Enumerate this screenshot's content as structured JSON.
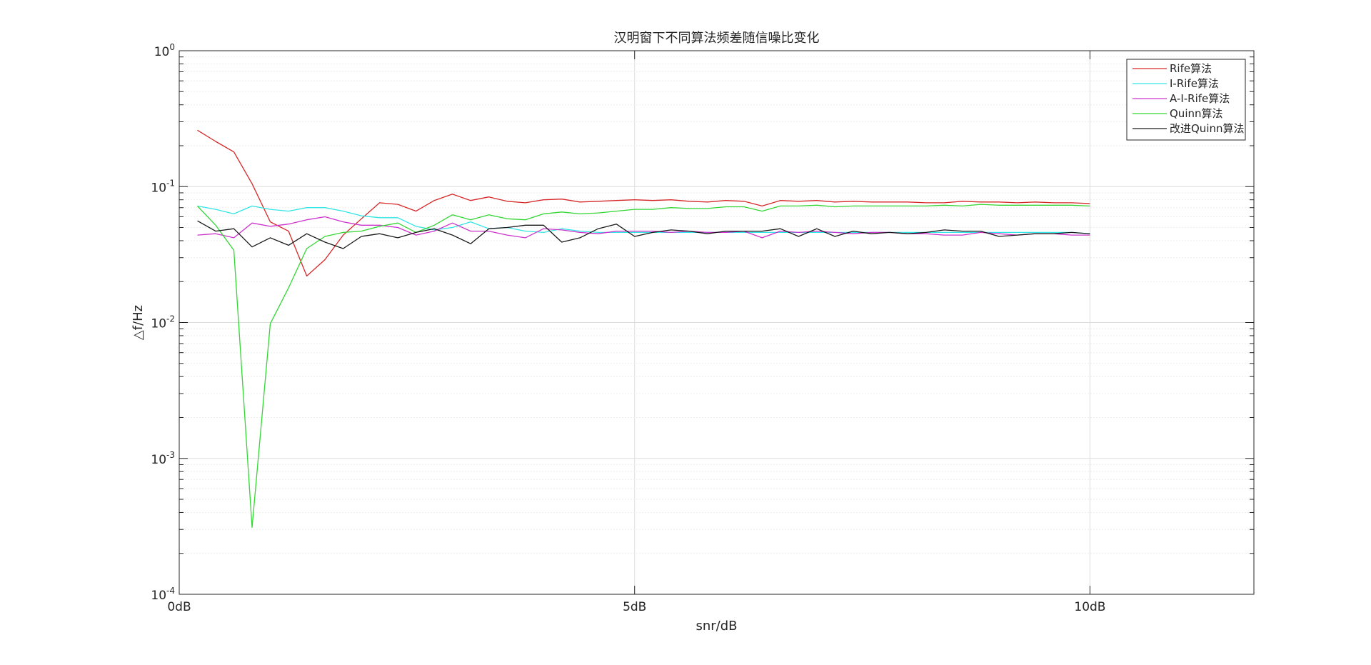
{
  "chart_data": {
    "type": "line",
    "title": "汉明窗下不同算法频差随信噪比变化",
    "xlabel": "snr/dB",
    "ylabel": "△f/Hz",
    "xscale": "linear",
    "yscale": "log",
    "xlim": [
      0,
      11.8
    ],
    "ylim": [
      0.0001,
      1
    ],
    "xticks": [
      0,
      5,
      10
    ],
    "xtick_labels": [
      "0dB",
      "5dB",
      "10dB"
    ],
    "yticks": [
      0.0001,
      0.001,
      0.01,
      0.1,
      1
    ],
    "ytick_labels": [
      {
        "base": "10",
        "exp": "-4"
      },
      {
        "base": "10",
        "exp": "-3"
      },
      {
        "base": "10",
        "exp": "-2"
      },
      {
        "base": "10",
        "exp": "-1"
      },
      {
        "base": "10",
        "exp": "0"
      }
    ],
    "grid": true,
    "legend_position": "top-right",
    "x": [
      0.2,
      0.4,
      0.6,
      0.8,
      1.0,
      1.2,
      1.4,
      1.6,
      1.8,
      2.0,
      2.2,
      2.4,
      2.6,
      2.8,
      3.0,
      3.2,
      3.4,
      3.6,
      3.8,
      4.0,
      4.2,
      4.4,
      4.6,
      4.8,
      5.0,
      5.2,
      5.4,
      5.6,
      5.8,
      6.0,
      6.2,
      6.4,
      6.6,
      6.8,
      7.0,
      7.2,
      7.4,
      7.6,
      7.8,
      8.0,
      8.2,
      8.4,
      8.6,
      8.8,
      9.0,
      9.2,
      9.4,
      9.6,
      9.8,
      10.0
    ],
    "series": [
      {
        "name": "Rife算法",
        "color": "#d62728",
        "values": [
          0.26,
          0.215,
          0.18,
          0.105,
          0.055,
          0.047,
          0.022,
          0.029,
          0.044,
          0.058,
          0.076,
          0.074,
          0.066,
          0.079,
          0.088,
          0.079,
          0.084,
          0.078,
          0.076,
          0.08,
          0.081,
          0.077,
          0.078,
          0.079,
          0.08,
          0.079,
          0.08,
          0.078,
          0.077,
          0.079,
          0.078,
          0.072,
          0.079,
          0.078,
          0.079,
          0.077,
          0.078,
          0.077,
          0.077,
          0.077,
          0.076,
          0.076,
          0.078,
          0.077,
          0.077,
          0.076,
          0.077,
          0.076,
          0.076,
          0.075
        ]
      },
      {
        "name": "I-Rife算法",
        "color": "#33e5e5",
        "values": [
          0.072,
          0.068,
          0.063,
          0.072,
          0.068,
          0.066,
          0.07,
          0.07,
          0.066,
          0.061,
          0.059,
          0.059,
          0.051,
          0.048,
          0.05,
          0.055,
          0.049,
          0.05,
          0.047,
          0.046,
          0.049,
          0.047,
          0.046,
          0.046,
          0.046,
          0.046,
          0.046,
          0.046,
          0.046,
          0.046,
          0.046,
          0.046,
          0.046,
          0.046,
          0.046,
          0.046,
          0.046,
          0.046,
          0.046,
          0.046,
          0.046,
          0.046,
          0.046,
          0.046,
          0.046,
          0.046,
          0.046,
          0.046,
          0.046,
          0.045
        ]
      },
      {
        "name": "A-I-Rife算法",
        "color": "#cc33cc",
        "values": [
          0.044,
          0.045,
          0.042,
          0.054,
          0.051,
          0.053,
          0.057,
          0.06,
          0.055,
          0.052,
          0.052,
          0.05,
          0.044,
          0.047,
          0.054,
          0.047,
          0.047,
          0.044,
          0.042,
          0.049,
          0.048,
          0.046,
          0.045,
          0.047,
          0.047,
          0.047,
          0.046,
          0.047,
          0.046,
          0.046,
          0.047,
          0.042,
          0.047,
          0.046,
          0.047,
          0.046,
          0.045,
          0.046,
          0.046,
          0.045,
          0.045,
          0.044,
          0.044,
          0.046,
          0.045,
          0.044,
          0.045,
          0.045,
          0.044,
          0.044
        ]
      },
      {
        "name": "Quinn算法",
        "color": "#33d633",
        "values": [
          0.072,
          0.052,
          0.034,
          0.00031,
          0.0098,
          0.018,
          0.035,
          0.043,
          0.046,
          0.047,
          0.051,
          0.054,
          0.046,
          0.052,
          0.062,
          0.057,
          0.062,
          0.058,
          0.057,
          0.063,
          0.065,
          0.063,
          0.064,
          0.066,
          0.068,
          0.068,
          0.07,
          0.069,
          0.069,
          0.071,
          0.071,
          0.066,
          0.072,
          0.072,
          0.073,
          0.071,
          0.072,
          0.072,
          0.072,
          0.072,
          0.072,
          0.073,
          0.072,
          0.074,
          0.073,
          0.073,
          0.073,
          0.073,
          0.073,
          0.072
        ]
      },
      {
        "name": "改进Quinn算法",
        "color": "#1a1a1a",
        "values": [
          0.056,
          0.047,
          0.049,
          0.036,
          0.042,
          0.037,
          0.045,
          0.039,
          0.035,
          0.043,
          0.045,
          0.042,
          0.046,
          0.049,
          0.044,
          0.038,
          0.049,
          0.05,
          0.052,
          0.052,
          0.039,
          0.042,
          0.049,
          0.053,
          0.043,
          0.046,
          0.048,
          0.047,
          0.045,
          0.047,
          0.047,
          0.047,
          0.049,
          0.043,
          0.049,
          0.043,
          0.047,
          0.045,
          0.046,
          0.045,
          0.046,
          0.048,
          0.047,
          0.047,
          0.043,
          0.044,
          0.045,
          0.045,
          0.046,
          0.045
        ]
      }
    ]
  }
}
